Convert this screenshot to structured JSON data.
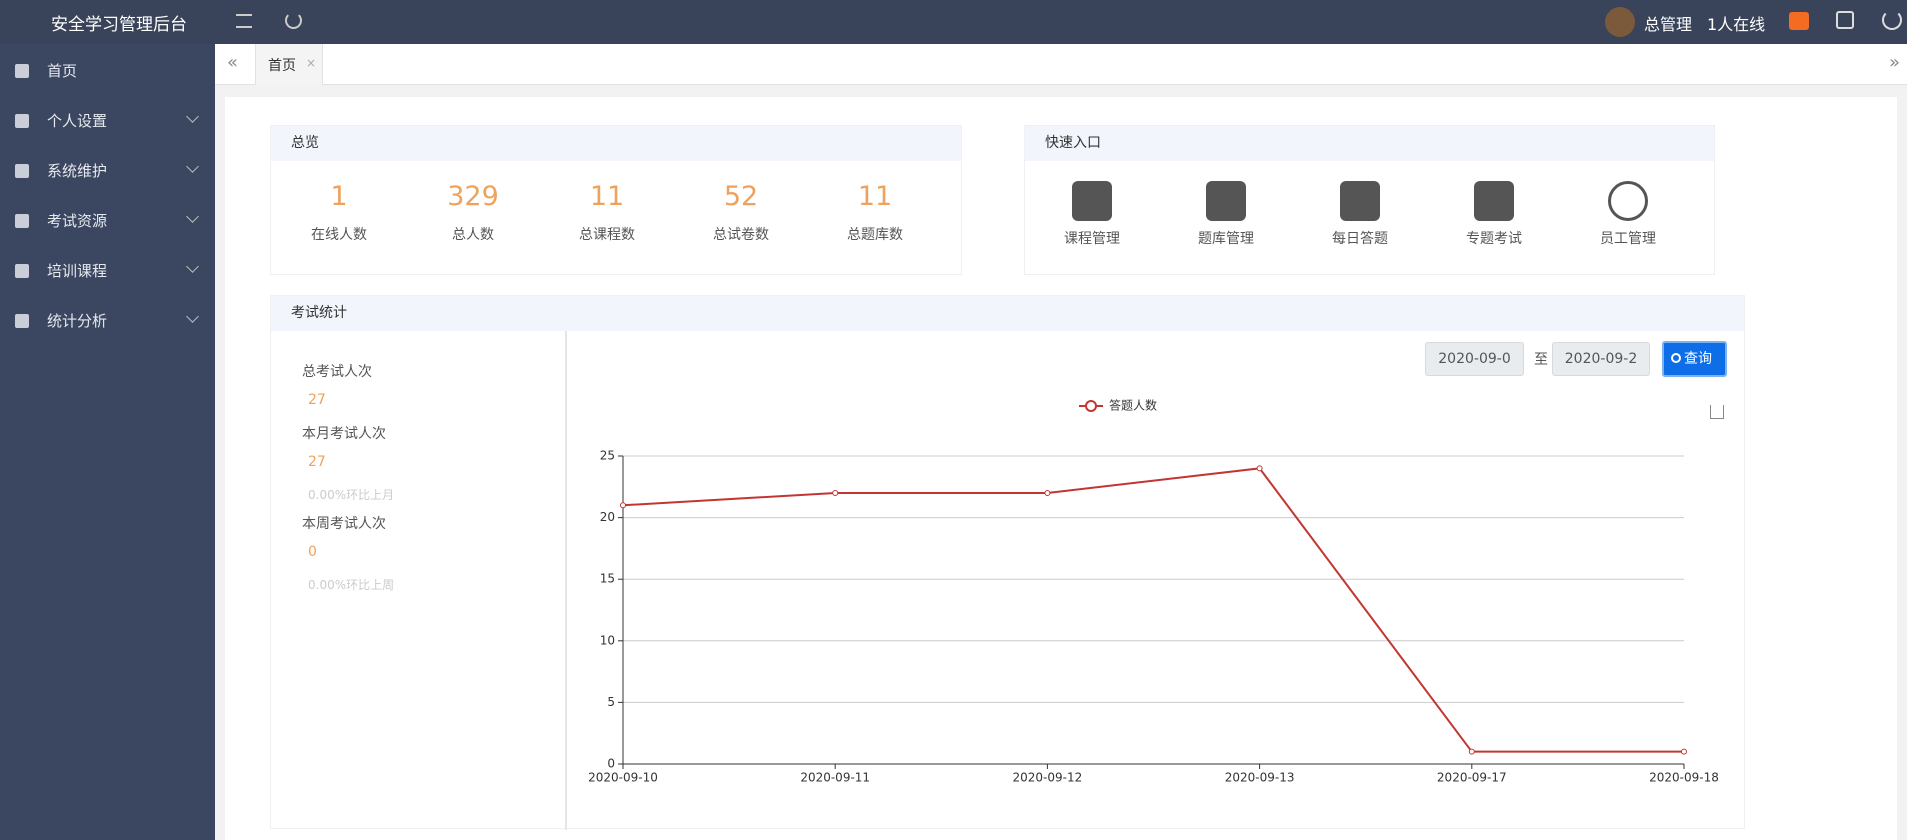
{
  "header": {
    "title": "安全学习管理后台",
    "user": "总管理",
    "online": "1人在线"
  },
  "sidebar": [
    "首页",
    "个人设置",
    "系统维护",
    "考试资源",
    "培训课程",
    "统计分析"
  ],
  "tabs": [
    "首页"
  ],
  "overview": {
    "title": "总览",
    "items": [
      {
        "value": 1,
        "label": "在线人数"
      },
      {
        "value": 329,
        "label": "总人数"
      },
      {
        "value": 11,
        "label": "总课程数"
      },
      {
        "value": 52,
        "label": "总试卷数"
      },
      {
        "value": 11,
        "label": "总题库数"
      }
    ]
  },
  "quick_entry": {
    "title": "快速入口",
    "items": [
      "课程管理",
      "题库管理",
      "每日答题",
      "专题考试",
      "员工管理"
    ]
  },
  "exam_stats": {
    "title": "考试统计",
    "total_label": "总考试人次",
    "total": 27,
    "month_label": "本月考试人次",
    "month": 27,
    "month_compare": "0.00%环比上月",
    "week_label": "本周考试人次",
    "week": 0,
    "week_compare": "0.00%环比上周",
    "date_from": "2020-09-0",
    "date_sep": "至",
    "date_to": "2020-09-2",
    "query": "查询"
  },
  "chart_data": {
    "type": "line",
    "categories": [
      "2020-09-10",
      "2020-09-11",
      "2020-09-12",
      "2020-09-13",
      "2020-09-17",
      "2020-09-18"
    ],
    "series": [
      {
        "name": "答题人数",
        "color": "#c23531",
        "values": [
          21,
          22,
          22,
          24,
          1,
          1
        ]
      }
    ],
    "ylim": [
      0,
      25
    ],
    "yticks": [
      0,
      5,
      10,
      15,
      20,
      25
    ],
    "grid": true
  }
}
